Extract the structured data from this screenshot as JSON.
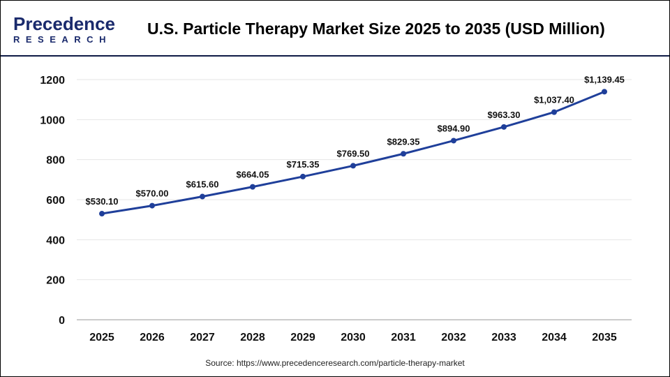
{
  "header": {
    "logo_line1": "Precedence",
    "logo_line2": "RESEARCH",
    "title": "U.S. Particle Therapy Market Size 2025 to 2035 (USD Million)"
  },
  "source": "Source: https://www.precedenceresearch.com/particle-therapy-market",
  "chart_data": {
    "type": "line",
    "title": "U.S. Particle Therapy Market Size 2025 to 2035 (USD Million)",
    "categories": [
      "2025",
      "2026",
      "2027",
      "2028",
      "2029",
      "2030",
      "2031",
      "2032",
      "2033",
      "2034",
      "2035"
    ],
    "series": [
      {
        "values": [
          530.1,
          570.0,
          615.6,
          664.05,
          715.35,
          769.5,
          829.35,
          894.9,
          963.3,
          1037.4,
          1139.45
        ],
        "labels": [
          "$530.10",
          "$570.00",
          "$615.60",
          "$664.05",
          "$715.35",
          "$769.50",
          "$829.35",
          "$894.90",
          "$963.30",
          "$1,037.40",
          "$1,139.45"
        ]
      }
    ],
    "ylim": [
      0,
      1200
    ],
    "yticks": [
      0,
      200,
      400,
      600,
      800,
      1000,
      1200
    ],
    "grid": true,
    "line_color": "#1f3f9a"
  }
}
